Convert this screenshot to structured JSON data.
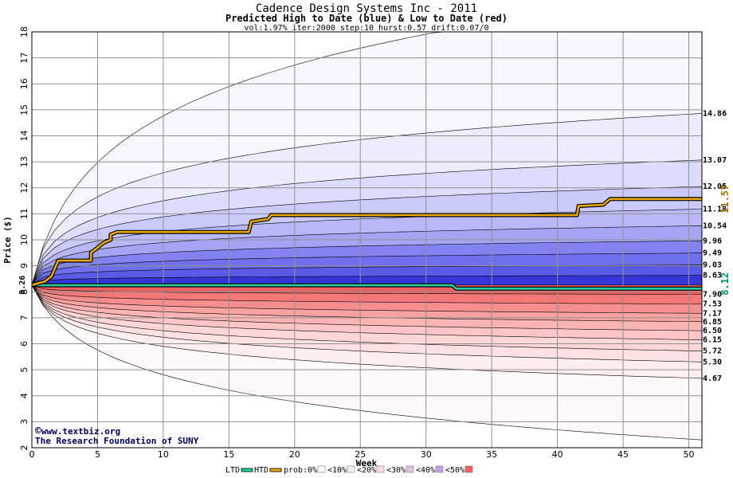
{
  "chart_data": {
    "type": "area",
    "title": "Cadence Design Systems Inc - 2011",
    "subtitle": "Predicted High to Date (blue) &  Low to Date (red)",
    "params": "vol:1.97% iter:2000 step:10 hurst:0.57 drift:0.07/0",
    "xlabel": "Week",
    "ylabel": "Price ($)",
    "xlim": [
      0,
      51
    ],
    "ylim": [
      2,
      18
    ],
    "xticks": [
      0,
      5,
      10,
      15,
      20,
      25,
      30,
      35,
      40,
      45,
      50
    ],
    "yticks": [
      2,
      3,
      4,
      5,
      6,
      7,
      8,
      9,
      10,
      11,
      12,
      13,
      14,
      15,
      16,
      17,
      18
    ],
    "grid": true,
    "start_price": 8.26,
    "start_label": "8.26",
    "high_bands": [
      {
        "end": 8.63,
        "label": "8.63",
        "color": "#3636d8",
        "k": 0.04
      },
      {
        "end": 9.03,
        "label": "9.03",
        "color": "#5a5ae6",
        "k": 0.06
      },
      {
        "end": 9.49,
        "label": "9.49",
        "color": "#7070ee",
        "k": 0.09
      },
      {
        "end": 9.96,
        "label": "9.96",
        "color": "#8282f0",
        "k": 0.12
      },
      {
        "end": 10.54,
        "label": "10.54",
        "color": "#a4a4f4",
        "k": 0.17
      },
      {
        "end": 11.18,
        "label": "11.18",
        "color": "#b8b8f6",
        "k": 0.22
      },
      {
        "end": 12.05,
        "label": "12.05",
        "color": "#cacafa",
        "k": 0.28
      },
      {
        "end": 13.07,
        "label": "13.07",
        "color": "#dcdcfc",
        "k": 0.38
      },
      {
        "end": 14.86,
        "label": "14.86",
        "color": "#ececfd",
        "k": 0.52
      },
      {
        "end": 19.5,
        "label": "",
        "color": "#f6f6ff",
        "k": 1.4
      }
    ],
    "low_bands": [
      {
        "end": 7.9,
        "label": "7.90",
        "color": "#f06060",
        "k": 0.05
      },
      {
        "end": 7.53,
        "label": "7.53",
        "color": "#f47878",
        "k": 0.07
      },
      {
        "end": 7.17,
        "label": "7.17",
        "color": "#f68e8e",
        "k": 0.1
      },
      {
        "end": 6.85,
        "label": "6.85",
        "color": "#f8a2a2",
        "k": 0.13
      },
      {
        "end": 6.5,
        "label": "6.50",
        "color": "#fab4b4",
        "k": 0.17
      },
      {
        "end": 6.15,
        "label": "6.15",
        "color": "#fcc6c6",
        "k": 0.22
      },
      {
        "end": 5.72,
        "label": "5.72",
        "color": "#fdd6d6",
        "k": 0.28
      },
      {
        "end": 5.3,
        "label": "5.30",
        "color": "#fee2e2",
        "k": 0.35
      },
      {
        "end": 4.67,
        "label": "4.67",
        "color": "#ffeeee",
        "k": 0.5
      },
      {
        "end": 2.3,
        "label": "",
        "color": "#fff8f8",
        "k": 1.4
      }
    ],
    "htd": {
      "name": "HTD",
      "label": "11.57",
      "color": "#e8a800",
      "points": [
        [
          0,
          8.26
        ],
        [
          1,
          8.4
        ],
        [
          1.5,
          8.6
        ],
        [
          2,
          9.2
        ],
        [
          4.5,
          9.2
        ],
        [
          4.5,
          9.5
        ],
        [
          5,
          9.7
        ],
        [
          5.5,
          9.9
        ],
        [
          6,
          10.0
        ],
        [
          6,
          10.2
        ],
        [
          6.5,
          10.3
        ],
        [
          16.5,
          10.3
        ],
        [
          16.7,
          10.7
        ],
        [
          18,
          10.8
        ],
        [
          18.2,
          10.95
        ],
        [
          41.5,
          10.95
        ],
        [
          41.6,
          11.3
        ],
        [
          43.5,
          11.35
        ],
        [
          44,
          11.57
        ],
        [
          51,
          11.57
        ]
      ]
    },
    "ltd": {
      "name": "LTD",
      "label": "8.12",
      "color": "#20d0a0",
      "points": [
        [
          0,
          8.26
        ],
        [
          1,
          8.25
        ],
        [
          32,
          8.25
        ],
        [
          32.3,
          8.12
        ],
        [
          51,
          8.12
        ]
      ]
    },
    "legend": {
      "ltd": "LTD",
      "htd": "HTD",
      "prob_prefix": "prob:",
      "items": [
        {
          "label": "0%",
          "color": "#fff8f8"
        },
        {
          "label": "<10%",
          "color": "#ffeeee"
        },
        {
          "label": "<20%",
          "color": "#fcdcdc"
        },
        {
          "label": "<30%",
          "color": "#e8c0e0"
        },
        {
          "label": "<40%",
          "color": "#c8a0e8"
        },
        {
          "label": "<50%",
          "color": "#f06060"
        }
      ]
    }
  },
  "credit": {
    "line1": "www.textbiz.org",
    "line2": "The Research Foundation of SUNY",
    "symbol": "©"
  }
}
